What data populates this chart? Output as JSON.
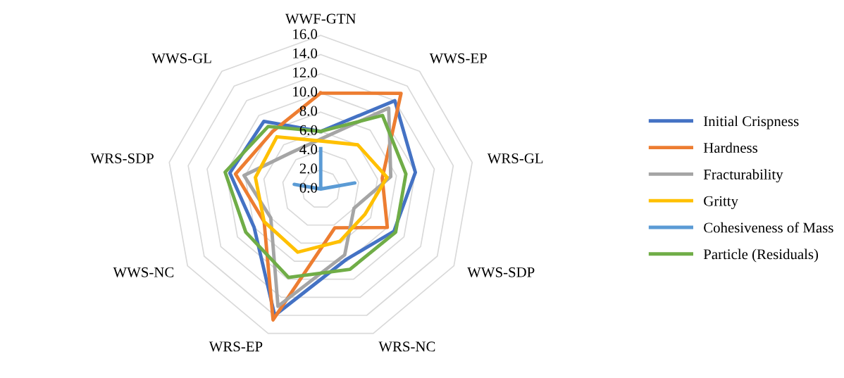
{
  "chart_data": {
    "type": "radar",
    "categories": [
      "WWF-GTN",
      "WWS-EP",
      "WRS-GL",
      "WWS-SDP",
      "WRS-NC",
      "WRS-EP",
      "WWS-NC",
      "WRS-SDP",
      "WWS-GL"
    ],
    "ylim": [
      0,
      16
    ],
    "yticks": [
      {
        "value": 0,
        "label": "0.0"
      },
      {
        "value": 2,
        "label": "2.0"
      },
      {
        "value": 4,
        "label": "4.0"
      },
      {
        "value": 6,
        "label": "6.0"
      },
      {
        "value": 8,
        "label": "8.0"
      },
      {
        "value": 10,
        "label": "10.0"
      },
      {
        "value": 12,
        "label": "12.0"
      },
      {
        "value": 14,
        "label": "14.0"
      },
      {
        "value": 16,
        "label": "16.0"
      }
    ],
    "grid": true,
    "legend": "right",
    "marker": "none",
    "line_style": "solid",
    "series": [
      {
        "name": "Initial Crispness",
        "color": "#4472c4",
        "values": [
          6,
          12,
          10,
          8.8,
          7.8,
          14,
          8,
          9.6,
          9.2
        ]
      },
      {
        "name": "Hardness",
        "color": "#ed7d31",
        "values": [
          10,
          13,
          6.5,
          8,
          4.3,
          14.5,
          6.8,
          9,
          7.8
        ]
      },
      {
        "name": "Fracturability",
        "color": "#a5a5a5",
        "values": [
          5.2,
          11,
          7.4,
          4,
          7.3,
          13,
          6,
          8.1,
          4.9
        ]
      },
      {
        "name": "Gritty",
        "color": "#ffc000",
        "values": [
          5,
          6,
          7,
          5.3,
          5.8,
          7,
          6.8,
          6.9,
          7.1
        ]
      },
      {
        "name": "Cohesiveness of Mass",
        "color": "#5b9bd5",
        "values": [
          4.2,
          0,
          3.6,
          0,
          0,
          0,
          0,
          2.8,
          0
        ]
      },
      {
        "name": "Particle (Residuals)",
        "color": "#70ad47",
        "values": [
          6,
          10,
          9,
          9,
          8.9,
          9.8,
          9,
          10.1,
          8.5
        ]
      }
    ]
  }
}
